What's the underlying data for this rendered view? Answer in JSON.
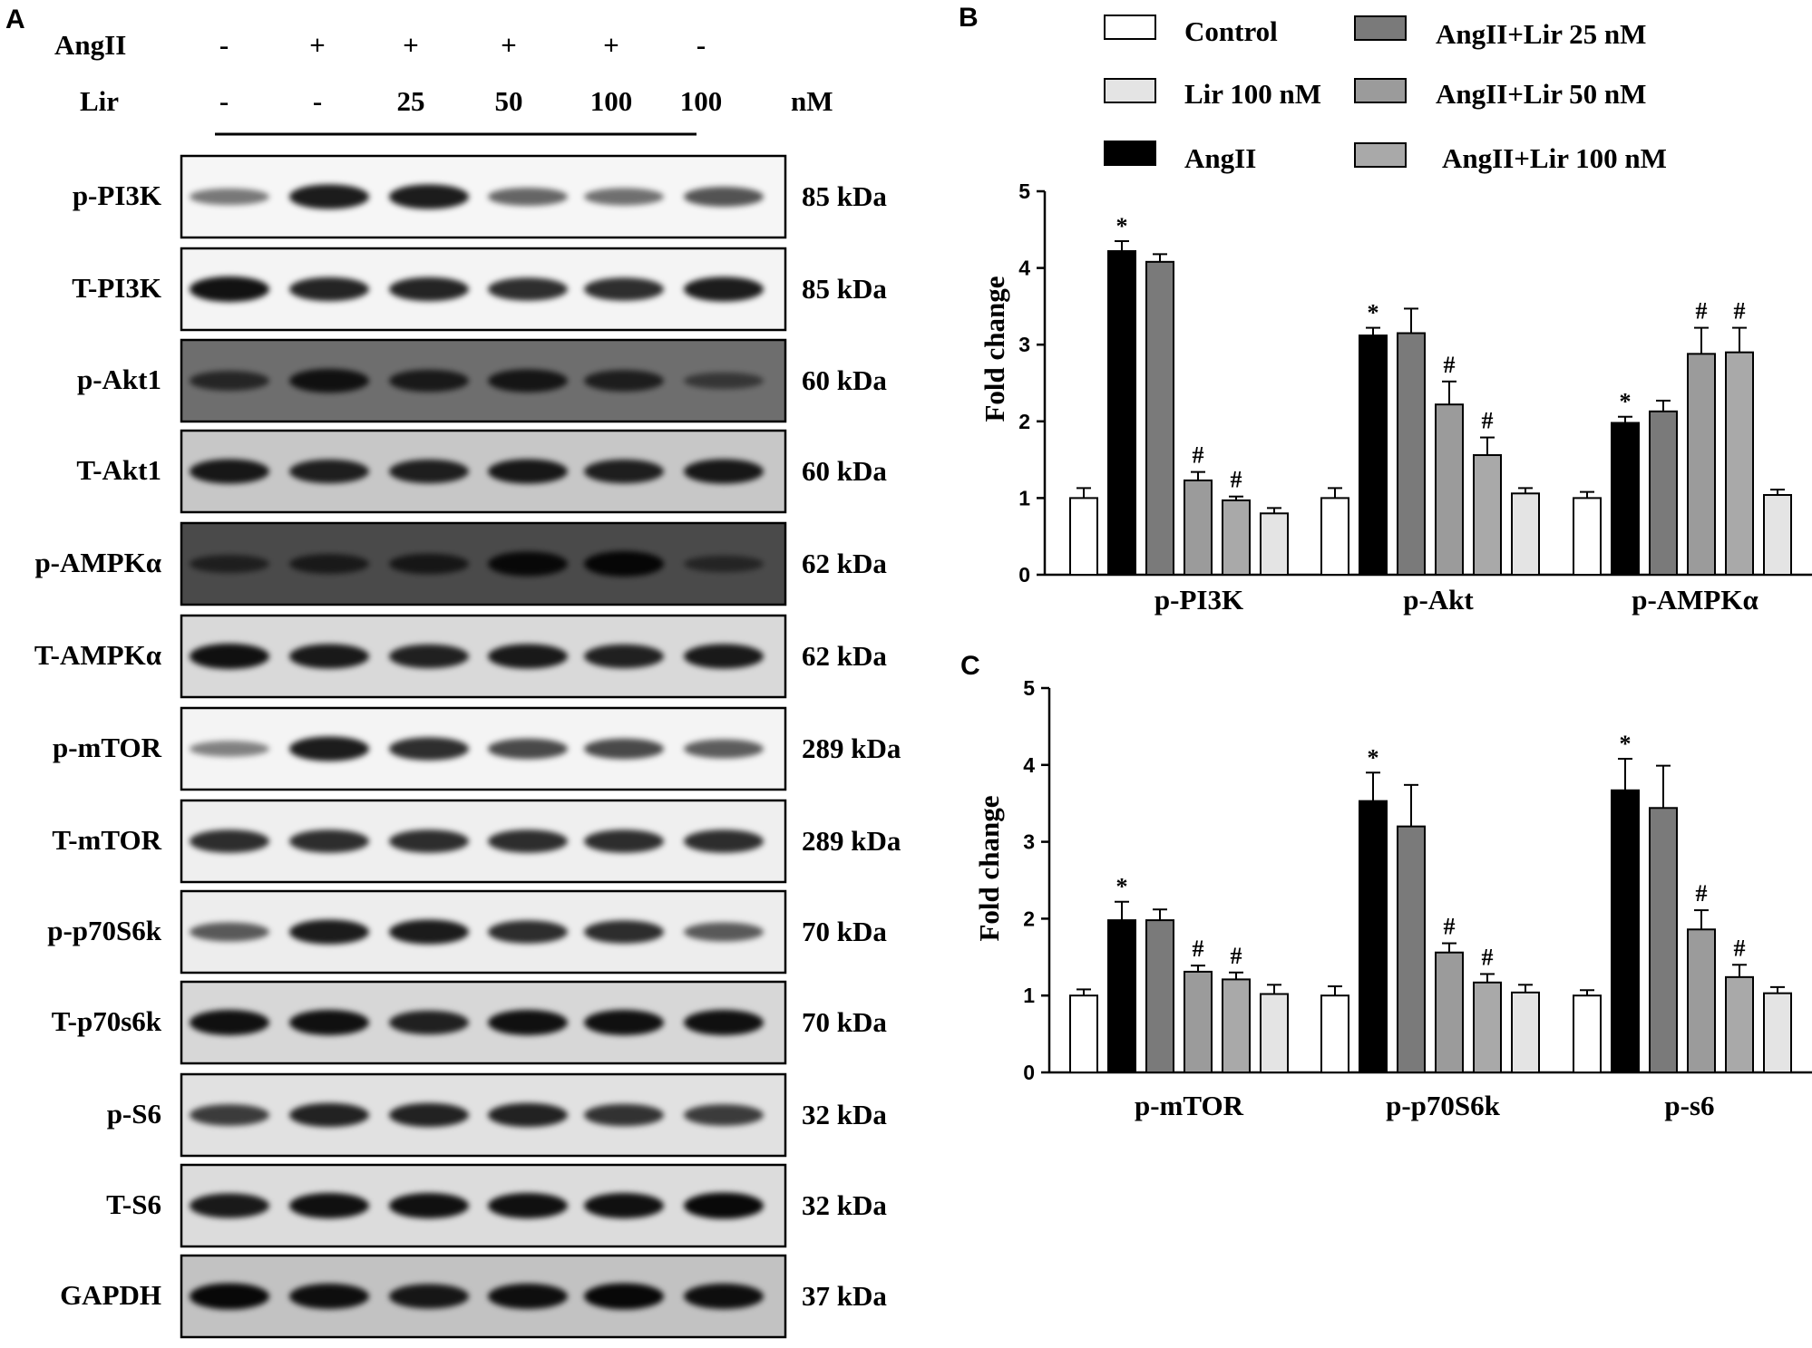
{
  "panel_labels": [
    "A",
    "B",
    "C"
  ],
  "blot": {
    "treatments": [
      {
        "name": "AngII",
        "values": [
          "-",
          "+",
          "+",
          "+",
          "+",
          "-"
        ],
        "unit": ""
      },
      {
        "name": "Lir",
        "values": [
          "-",
          "-",
          "25",
          "50",
          "100",
          "100"
        ],
        "unit": "nM"
      }
    ],
    "rows": [
      {
        "label": "p-PI3K",
        "kda": "85 kDa",
        "bg": "#f6f6f6",
        "bands": [
          0.35,
          0.85,
          0.85,
          0.45,
          0.4,
          0.55
        ]
      },
      {
        "label": "T-PI3K",
        "kda": "85 kDa",
        "bg": "#f4f4f4",
        "bands": [
          0.9,
          0.8,
          0.8,
          0.75,
          0.75,
          0.85
        ]
      },
      {
        "label": "p-Akt1",
        "kda": "60 kDa",
        "bg": "#6e6e6e",
        "bands": [
          0.55,
          0.8,
          0.7,
          0.75,
          0.65,
          0.35
        ]
      },
      {
        "label": "T-Akt1",
        "kda": "60 kDa",
        "bg": "#c7c7c7",
        "bands": [
          0.85,
          0.8,
          0.8,
          0.85,
          0.8,
          0.85
        ]
      },
      {
        "label": "p-AMPKα",
        "kda": "62 kDa",
        "bg": "#4a4a4a",
        "bands": [
          0.45,
          0.55,
          0.6,
          0.85,
          0.9,
          0.35
        ]
      },
      {
        "label": "T-AMPKα",
        "kda": "62 kDa",
        "bg": "#d9d9d9",
        "bands": [
          0.9,
          0.85,
          0.8,
          0.85,
          0.8,
          0.85
        ]
      },
      {
        "label": "p-mTOR",
        "kda": "289 kDa",
        "bg": "#f4f4f4",
        "bands": [
          0.3,
          0.85,
          0.75,
          0.6,
          0.6,
          0.5
        ]
      },
      {
        "label": "T-mTOR",
        "kda": "289 kDa",
        "bg": "#efefef",
        "bands": [
          0.75,
          0.75,
          0.75,
          0.75,
          0.75,
          0.75
        ]
      },
      {
        "label": "p-p70S6k",
        "kda": "70 kDa",
        "bg": "#ededed",
        "bands": [
          0.5,
          0.85,
          0.85,
          0.75,
          0.75,
          0.5
        ]
      },
      {
        "label": "T-p70s6k",
        "kda": "70 kDa",
        "bg": "#d7d7d7",
        "bands": [
          0.9,
          0.9,
          0.8,
          0.9,
          0.9,
          0.9
        ]
      },
      {
        "label": "p-S6",
        "kda": "32 kDa",
        "bg": "#e1e1e1",
        "bands": [
          0.65,
          0.8,
          0.8,
          0.8,
          0.7,
          0.65
        ]
      },
      {
        "label": "T-S6",
        "kda": "32 kDa",
        "bg": "#dcdcdc",
        "bands": [
          0.85,
          0.9,
          0.9,
          0.9,
          0.9,
          0.95
        ]
      },
      {
        "label": "GAPDH",
        "kda": "37 kDa",
        "bg": "#c2c2c2",
        "bands": [
          0.95,
          0.9,
          0.85,
          0.9,
          0.95,
          0.9
        ]
      }
    ]
  },
  "legend": [
    {
      "label": "Control",
      "color": "#ffffff"
    },
    {
      "label": "Lir 100 nM",
      "color": "#e4e4e4"
    },
    {
      "label": "AngII",
      "color": "#000000"
    },
    {
      "label": "AngII+Lir 25 nM",
      "color": "#7a7a7a"
    },
    {
      "label": "AngII+Lir 50  nM",
      "color": "#9b9b9b"
    },
    {
      "label": "AngII+Lir 100 nM",
      "color": "#a9a9a9"
    }
  ],
  "chart_data": [
    {
      "panel": "B",
      "type": "bar",
      "ylabel": "Fold change",
      "ylim": [
        0,
        5
      ],
      "yticks": [
        0,
        1,
        2,
        3,
        4,
        5
      ],
      "categories": [
        "p-PI3K",
        "p-Akt",
        "p-AMPKα"
      ],
      "series": [
        {
          "name": "Control",
          "values": [
            1.0,
            1.0,
            1.0
          ],
          "errors": [
            0.13,
            0.13,
            0.08
          ],
          "marks": [
            "",
            "",
            ""
          ]
        },
        {
          "name": "AngII",
          "values": [
            4.22,
            3.12,
            1.98
          ],
          "errors": [
            0.13,
            0.1,
            0.08
          ],
          "marks": [
            "*",
            "*",
            "*"
          ]
        },
        {
          "name": "AngII+Lir 25 nM",
          "values": [
            4.08,
            3.15,
            2.13
          ],
          "errors": [
            0.1,
            0.32,
            0.14
          ],
          "marks": [
            "",
            "",
            ""
          ]
        },
        {
          "name": "AngII+Lir 50  nM",
          "values": [
            1.23,
            2.22,
            2.88
          ],
          "errors": [
            0.11,
            0.3,
            0.34
          ],
          "marks": [
            "#",
            "#",
            "#"
          ]
        },
        {
          "name": "AngII+Lir 100 nM",
          "values": [
            0.97,
            1.56,
            2.9
          ],
          "errors": [
            0.05,
            0.23,
            0.32
          ],
          "marks": [
            "#",
            "#",
            "#"
          ]
        },
        {
          "name": "Lir 100 nM",
          "values": [
            0.8,
            1.06,
            1.04
          ],
          "errors": [
            0.07,
            0.07,
            0.07
          ],
          "marks": [
            "",
            "",
            ""
          ]
        }
      ]
    },
    {
      "panel": "C",
      "type": "bar",
      "ylabel": "Fold change",
      "ylim": [
        0,
        5
      ],
      "yticks": [
        0,
        1,
        2,
        3,
        4,
        5
      ],
      "categories": [
        "p-mTOR",
        "p-p70S6k",
        "p-s6"
      ],
      "series": [
        {
          "name": "Control",
          "values": [
            1.0,
            1.0,
            1.0
          ],
          "errors": [
            0.08,
            0.12,
            0.07
          ],
          "marks": [
            "",
            "",
            ""
          ]
        },
        {
          "name": "AngII",
          "values": [
            1.98,
            3.53,
            3.67
          ],
          "errors": [
            0.24,
            0.37,
            0.41
          ],
          "marks": [
            "*",
            "*",
            "*"
          ]
        },
        {
          "name": "AngII+Lir 25 nM",
          "values": [
            1.98,
            3.2,
            3.44
          ],
          "errors": [
            0.14,
            0.54,
            0.55
          ],
          "marks": [
            "",
            "",
            ""
          ]
        },
        {
          "name": "AngII+Lir 50  nM",
          "values": [
            1.31,
            1.56,
            1.86
          ],
          "errors": [
            0.08,
            0.12,
            0.25
          ],
          "marks": [
            "#",
            "#",
            "#"
          ]
        },
        {
          "name": "AngII+Lir 100 nM",
          "values": [
            1.21,
            1.17,
            1.24
          ],
          "errors": [
            0.09,
            0.11,
            0.16
          ],
          "marks": [
            "#",
            "#",
            "#"
          ]
        },
        {
          "name": "Lir 100 nM",
          "values": [
            1.02,
            1.04,
            1.03
          ],
          "errors": [
            0.12,
            0.1,
            0.08
          ],
          "marks": [
            "",
            "",
            ""
          ]
        }
      ]
    }
  ]
}
